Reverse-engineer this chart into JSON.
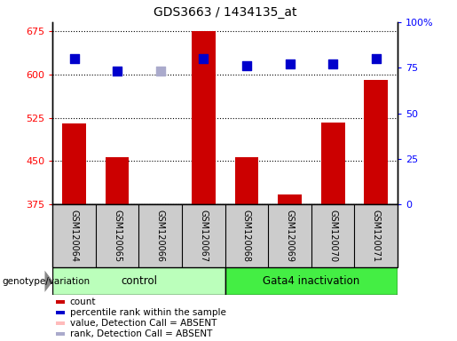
{
  "title": "GDS3663 / 1434135_at",
  "samples": [
    "GSM120064",
    "GSM120065",
    "GSM120066",
    "GSM120067",
    "GSM120068",
    "GSM120069",
    "GSM120070",
    "GSM120071"
  ],
  "count_values": [
    515,
    457,
    375,
    675,
    457,
    393,
    517,
    590
  ],
  "percentile_values": [
    80,
    73,
    73,
    80,
    76,
    77,
    77,
    80
  ],
  "absent_mask": [
    false,
    false,
    true,
    false,
    false,
    false,
    false,
    false
  ],
  "ylim_left": [
    375,
    690
  ],
  "ylim_right": [
    0,
    100
  ],
  "yticks_left": [
    375,
    450,
    525,
    600,
    675
  ],
  "yticks_right": [
    0,
    25,
    50,
    75,
    100
  ],
  "ytick_labels_right": [
    "0",
    "25",
    "50",
    "75",
    "100%"
  ],
  "bar_color_normal": "#cc0000",
  "bar_color_absent": "#ffbbbb",
  "dot_color_normal": "#0000cc",
  "dot_color_absent": "#aaaacc",
  "group1_label": "control",
  "group2_label": "Gata4 inactivation",
  "group1_indices": [
    0,
    1,
    2,
    3
  ],
  "group2_indices": [
    4,
    5,
    6,
    7
  ],
  "group1_color": "#bbffbb",
  "group2_color": "#44ee44",
  "bg_color": "#cccccc",
  "legend_items": [
    {
      "label": "count",
      "color": "#cc0000"
    },
    {
      "label": "percentile rank within the sample",
      "color": "#0000cc"
    },
    {
      "label": "value, Detection Call = ABSENT",
      "color": "#ffbbbb"
    },
    {
      "label": "rank, Detection Call = ABSENT",
      "color": "#aaaacc"
    }
  ],
  "dot_size": 55,
  "bar_width": 0.55,
  "genotype_label": "genotype/variation",
  "hgrid_color": "black",
  "hgrid_style": "dotted"
}
